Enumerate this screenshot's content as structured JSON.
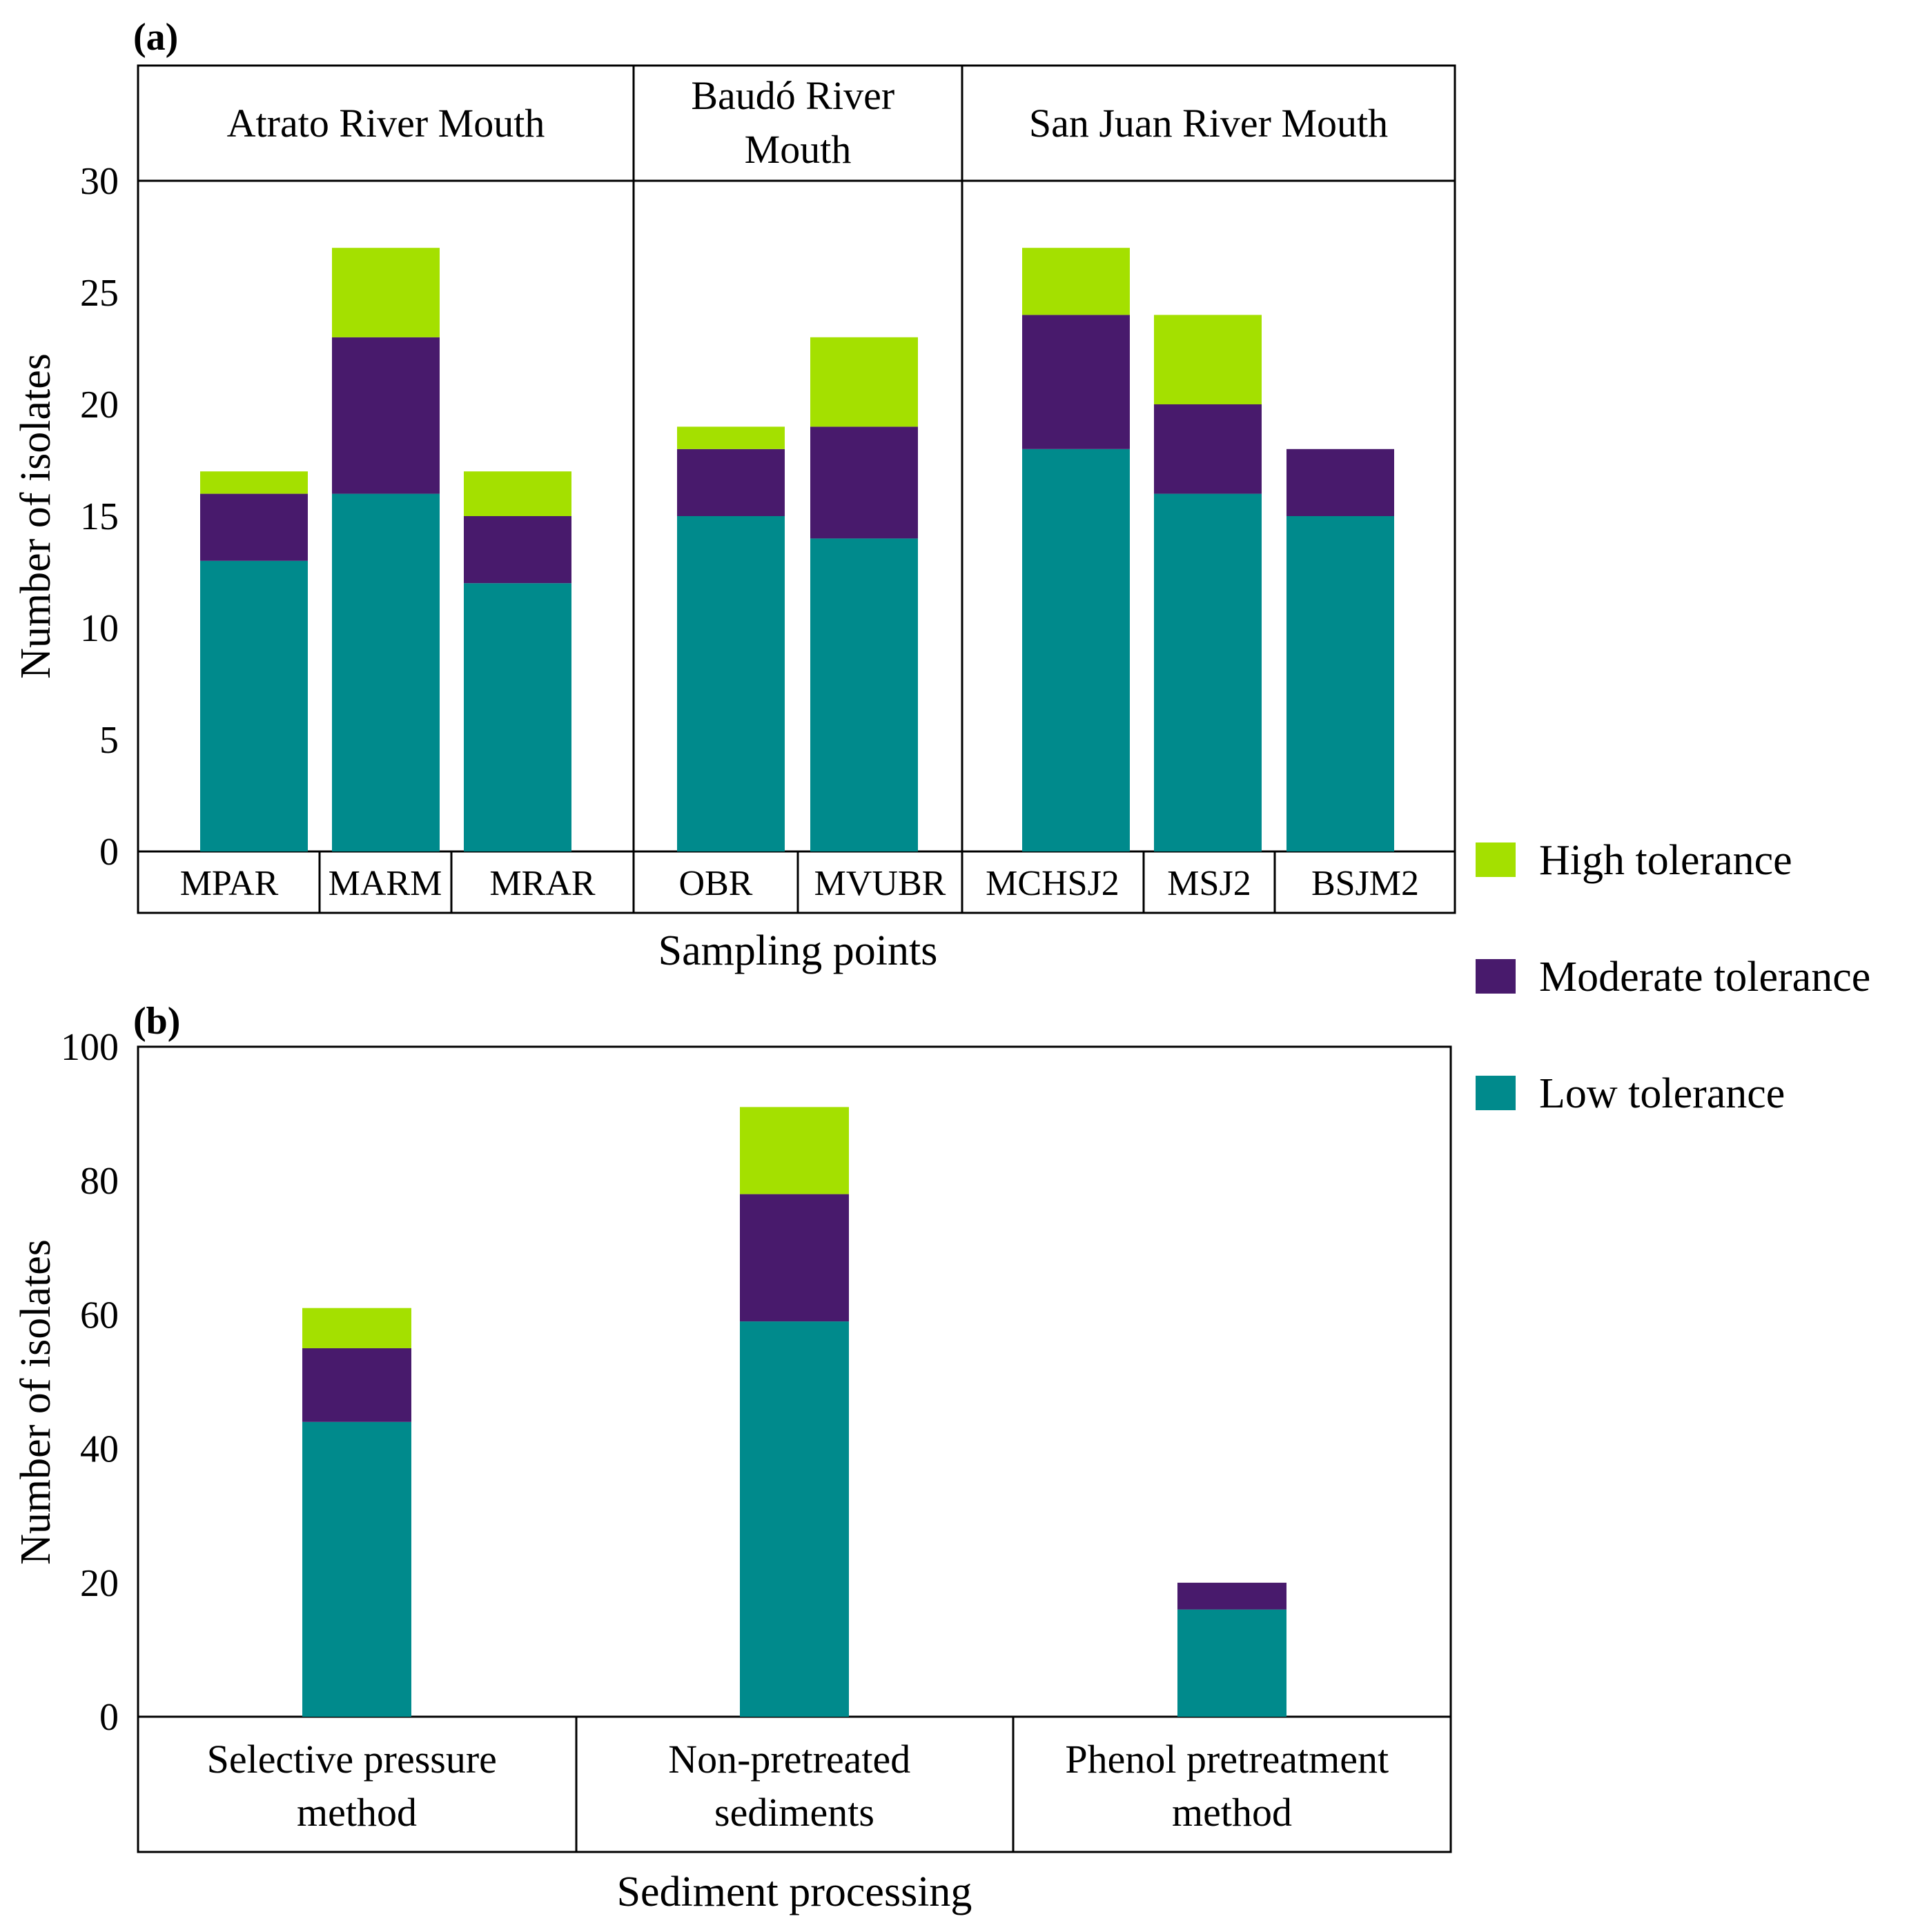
{
  "colors": {
    "high": "#a4e000",
    "moderate": "#481a6c",
    "low": "#008a8c"
  },
  "legend": [
    {
      "key": "high",
      "label": "High tolerance"
    },
    {
      "key": "moderate",
      "label": "Moderate tolerance"
    },
    {
      "key": "low",
      "label": "Low tolerance"
    }
  ],
  "chart_data": [
    {
      "panel": "(a)",
      "type": "bar",
      "stacked": true,
      "ylabel": "Number of isolates",
      "xlabel": "Sampling points",
      "ylim": [
        0,
        30
      ],
      "yticks": [
        0,
        5,
        10,
        15,
        20,
        25,
        30
      ],
      "groups": [
        {
          "label": "Atrato River Mouth",
          "categories": [
            "MPAR",
            "MARM",
            "MRAR"
          ]
        },
        {
          "label": "Baudó River Mouth",
          "categories": [
            "OBR",
            "MVUBR"
          ]
        },
        {
          "label": "San Juan River Mouth",
          "categories": [
            "MCHSJ2",
            "MSJ2",
            "BSJM2"
          ]
        }
      ],
      "categories": [
        "MPAR",
        "MARM",
        "MRAR",
        "OBR",
        "MVUBR",
        "MCHSJ2",
        "MSJ2",
        "BSJM2"
      ],
      "series": [
        {
          "name": "Low tolerance",
          "key": "low",
          "values": [
            13,
            16,
            12,
            15,
            14,
            18,
            16,
            15
          ]
        },
        {
          "name": "Moderate tolerance",
          "key": "moderate",
          "values": [
            3,
            7,
            3,
            3,
            5,
            6,
            4,
            3
          ]
        },
        {
          "name": "High tolerance",
          "key": "high",
          "values": [
            1,
            4,
            2,
            1,
            4,
            3,
            4,
            0
          ]
        }
      ]
    },
    {
      "panel": "(b)",
      "type": "bar",
      "stacked": true,
      "ylabel": "Number of isolates",
      "xlabel": "Sediment processing",
      "ylim": [
        0,
        100
      ],
      "yticks": [
        0,
        20,
        40,
        60,
        80,
        100
      ],
      "categories": [
        "Selective pressure method",
        "Non-pretreated sediments",
        "Phenol pretreatment method"
      ],
      "category_lines": [
        [
          "Selective pressure",
          "method"
        ],
        [
          "Non-pretreated",
          "sediments"
        ],
        [
          "Phenol pretreatment",
          "method"
        ]
      ],
      "series": [
        {
          "name": "Low tolerance",
          "key": "low",
          "values": [
            44,
            59,
            16
          ]
        },
        {
          "name": "Moderate tolerance",
          "key": "moderate",
          "values": [
            11,
            19,
            4
          ]
        },
        {
          "name": "High tolerance",
          "key": "high",
          "values": [
            6,
            13,
            0
          ]
        }
      ]
    }
  ]
}
